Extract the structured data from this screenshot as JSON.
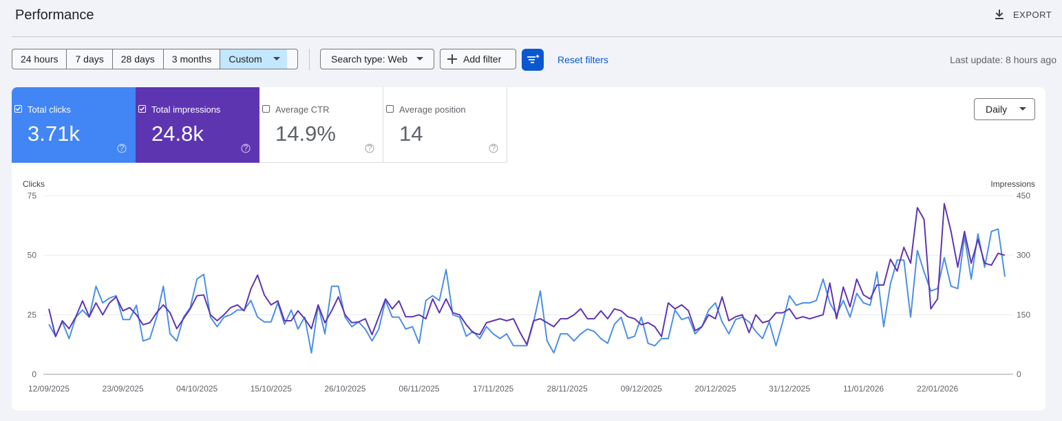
{
  "header": {
    "title": "Performance",
    "export": "EXPORT"
  },
  "filters": {
    "ranges": [
      "24 hours",
      "7 days",
      "28 days",
      "3 months",
      "Custom"
    ],
    "selected_range": 4,
    "search_type": "Search type: Web",
    "add_filter": "Add filter",
    "reset": "Reset filters",
    "last_update": "Last update: 8 hours ago"
  },
  "metrics": [
    {
      "label": "Total clicks",
      "value": "3.71k",
      "checked": true,
      "color": "#4285f4"
    },
    {
      "label": "Total impressions",
      "value": "24.8k",
      "checked": true,
      "color": "#5e35b1"
    },
    {
      "label": "Average CTR",
      "value": "14.9%",
      "checked": false
    },
    {
      "label": "Average position",
      "value": "14",
      "checked": false
    }
  ],
  "granularity": "Daily",
  "chart_data": {
    "type": "line",
    "y_label": "Clicks",
    "y2_label": "Impressions",
    "categories": [
      "12/09/2025",
      null,
      null,
      null,
      null,
      null,
      null,
      null,
      null,
      null,
      null,
      "23/09/2025",
      null,
      null,
      null,
      null,
      null,
      null,
      null,
      null,
      null,
      null,
      "04/10/2025",
      null,
      null,
      null,
      null,
      null,
      null,
      null,
      null,
      null,
      null,
      "15/10/2025",
      null,
      null,
      null,
      null,
      null,
      null,
      null,
      null,
      null,
      null,
      "26/10/2025",
      null,
      null,
      null,
      null,
      null,
      null,
      null,
      null,
      null,
      null,
      "06/11/2025",
      null,
      null,
      null,
      null,
      null,
      null,
      null,
      null,
      null,
      null,
      "17/11/2025",
      null,
      null,
      null,
      null,
      null,
      null,
      null,
      null,
      null,
      null,
      "28/11/2025",
      null,
      null,
      null,
      null,
      null,
      null,
      null,
      null,
      null,
      null,
      "09/12/2025",
      null,
      null,
      null,
      null,
      null,
      null,
      null,
      null,
      null,
      null,
      "20/12/2025",
      null,
      null,
      null,
      null,
      null,
      null,
      null,
      null,
      null,
      null,
      "31/12/2025",
      null,
      null,
      null,
      null,
      null,
      null,
      null,
      null,
      null,
      null,
      "11/01/2026",
      null,
      null,
      null,
      null,
      null,
      null,
      null,
      null,
      null,
      null,
      "22/01/2026",
      null,
      null,
      null,
      null,
      null,
      null,
      null,
      null,
      null,
      null
    ],
    "series": [
      {
        "name": "Clicks",
        "color": "#4a8fe7",
        "values": [
          21,
          16,
          22,
          15,
          24,
          27,
          24,
          37,
          30,
          32,
          33,
          23,
          23,
          29,
          14,
          15,
          24,
          37,
          17,
          14,
          24,
          28,
          40,
          42,
          24,
          20,
          24,
          25,
          27,
          27,
          31,
          24,
          22,
          22,
          30,
          21,
          27,
          19,
          24,
          9,
          29,
          17,
          37,
          37,
          24,
          20,
          22,
          19,
          14,
          19,
          31,
          24,
          24,
          19,
          20,
          13,
          31,
          33,
          31,
          44,
          25,
          24,
          16,
          18,
          15,
          20,
          17,
          15,
          17,
          12,
          12,
          12,
          22,
          35,
          14,
          9,
          17,
          17,
          14,
          17,
          19,
          18,
          15,
          13,
          21,
          24,
          15,
          16,
          24,
          13,
          12,
          15,
          15,
          27,
          23,
          24,
          17,
          20,
          27,
          30,
          22,
          17,
          23,
          24,
          22,
          18,
          15,
          22,
          12,
          22,
          33,
          29,
          30,
          30,
          31,
          40,
          30,
          25,
          31,
          24,
          34,
          30,
          29,
          43,
          20,
          38,
          48,
          48,
          24,
          52,
          43,
          35,
          36,
          49,
          37,
          36,
          58,
          40,
          59,
          45,
          60,
          61,
          41
        ]
      },
      {
        "name": "Impressions",
        "color": "#5e35b1",
        "axis": "y2",
        "values": [
          165,
          95,
          135,
          115,
          145,
          185,
          145,
          180,
          150,
          180,
          195,
          160,
          168,
          150,
          125,
          130,
          155,
          175,
          155,
          115,
          140,
          165,
          198,
          200,
          150,
          135,
          150,
          168,
          175,
          160,
          215,
          250,
          200,
          175,
          185,
          135,
          135,
          160,
          140,
          115,
          175,
          130,
          160,
          195,
          150,
          130,
          132,
          140,
          100,
          145,
          190,
          165,
          185,
          145,
          145,
          150,
          140,
          190,
          155,
          190,
          155,
          150,
          125,
          105,
          100,
          130,
          135,
          140,
          135,
          140,
          105,
          75,
          135,
          140,
          130,
          120,
          140,
          140,
          150,
          165,
          140,
          140,
          160,
          140,
          165,
          160,
          145,
          140,
          125,
          130,
          120,
          95,
          180,
          165,
          175,
          160,
          110,
          120,
          150,
          140,
          195,
          135,
          145,
          150,
          105,
          150,
          130,
          135,
          155,
          155,
          165,
          140,
          145,
          140,
          145,
          150,
          230,
          140,
          220,
          170,
          240,
          200,
          190,
          225,
          225,
          290,
          260,
          320,
          280,
          420,
          390,
          165,
          190,
          430,
          360,
          270,
          360,
          280,
          340,
          280,
          275,
          305,
          300
        ]
      }
    ],
    "ylim": [
      0,
      75
    ],
    "yticks": [
      0,
      25,
      50,
      75
    ],
    "y2lim": [
      0,
      450
    ],
    "y2ticks": [
      0,
      150,
      300,
      450
    ],
    "grid": true
  }
}
